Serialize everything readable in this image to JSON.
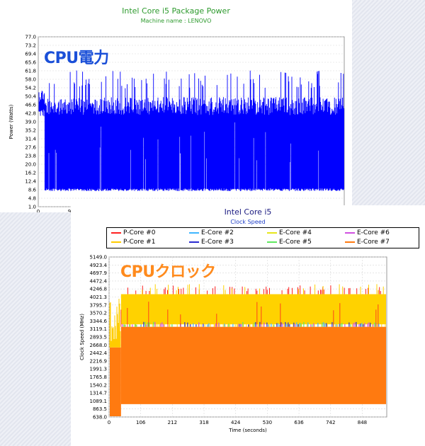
{
  "chart_data": [
    {
      "type": "line",
      "title": "Intel Core i5 Package Power",
      "subtitle": "Machine name : LENOVO",
      "overlay_label": "CPU電力",
      "overlay_color": "#1a4fd8",
      "ylabel": "Power (Watts)",
      "ylim": [
        1.0,
        77.0
      ],
      "y_ticks": [
        "77.0",
        "73.2",
        "69.4",
        "65.6",
        "61.8",
        "58.0",
        "54.2",
        "50.4",
        "46.6",
        "42.8",
        "39.0",
        "35.2",
        "31.4",
        "27.6",
        "23.8",
        "20.0",
        "16.2",
        "12.4",
        "8.6",
        "4.8",
        "1.0"
      ],
      "x_ticks": [
        "0",
        "9"
      ],
      "x_range": [
        0,
        930
      ],
      "series": [
        {
          "color": "#0000ff",
          "startup": {
            "x_end": 20,
            "min": 41,
            "max": 54
          },
          "steady": {
            "x_start": 20,
            "min": 8.0,
            "max_typical": 54,
            "peak_max": 62
          }
        }
      ],
      "grid": true
    },
    {
      "type": "area",
      "title": "Intel Core i5",
      "subtitle": "Clock Speed",
      "overlay_label": "CPUクロック",
      "overlay_color": "#ff8a1c",
      "xlabel": "Time (seconds)",
      "ylabel": "Clock Speed (MHz)",
      "ylim": [
        638.0,
        5149.0
      ],
      "y_ticks": [
        "5149.0",
        "4923.4",
        "4697.9",
        "4472.4",
        "4246.8",
        "4021.3",
        "3795.7",
        "3570.2",
        "3344.6",
        "3119.1",
        "2893.5",
        "2668.0",
        "2442.4",
        "2216.9",
        "1991.3",
        "1765.8",
        "1540.2",
        "1314.7",
        "1089.1",
        "863.5",
        "638.0"
      ],
      "x_ticks": [
        "0",
        "106",
        "212",
        "318",
        "424",
        "530",
        "636",
        "742",
        "848"
      ],
      "xlim": [
        0,
        930
      ],
      "legend": [
        {
          "name": "P-Core #0",
          "color": "#ff2020"
        },
        {
          "name": "E-Core #2",
          "color": "#3fb6ff"
        },
        {
          "name": "E-Core #4",
          "color": "#e6e61a"
        },
        {
          "name": "E-Core #6",
          "color": "#d04fe0"
        },
        {
          "name": "P-Core #1",
          "color": "#ffcc00"
        },
        {
          "name": "E-Core #3",
          "color": "#2a2ad0"
        },
        {
          "name": "E-Core #5",
          "color": "#5fe85f"
        },
        {
          "name": "E-Core #7",
          "color": "#ff7a10"
        }
      ],
      "series_levels": {
        "p_core_band": {
          "min": 3250,
          "max": 4100,
          "spike_max": 4350
        },
        "e_core_level": 3180,
        "e_core_floor": 1000,
        "startup_x_end": 40,
        "startup_level": 2600
      },
      "grid": true
    }
  ]
}
